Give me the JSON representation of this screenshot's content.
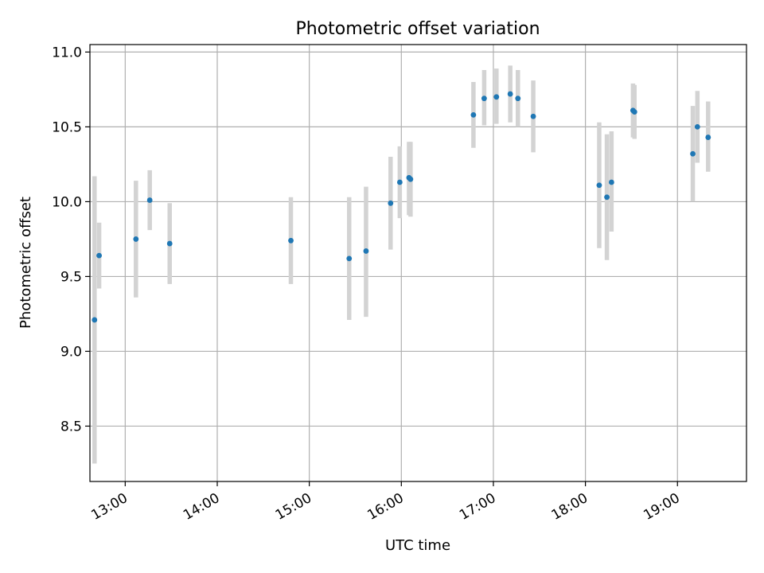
{
  "chart_data": {
    "type": "scatter",
    "title": "Photometric offset variation",
    "xlabel": "UTC time",
    "ylabel": "Photometric offset",
    "x_tick_labels": [
      "13:00",
      "14:00",
      "15:00",
      "16:00",
      "17:00",
      "18:00",
      "19:00"
    ],
    "y_tick_labels": [
      "8.5",
      "9.0",
      "9.5",
      "10.0",
      "10.5",
      "11.0"
    ],
    "xlim": [
      "12:37",
      "19:45"
    ],
    "ylim": [
      8.13,
      11.05
    ],
    "grid": true,
    "colors": {
      "point": "#1f77b4",
      "errorbar": "#d3d3d3",
      "grid": "#b0b0b0"
    },
    "points": [
      {
        "t": "12:40",
        "y": 9.21,
        "lo": 8.25,
        "hi": 10.17
      },
      {
        "t": "12:43",
        "y": 9.64,
        "lo": 9.42,
        "hi": 9.86
      },
      {
        "t": "13:07",
        "y": 9.75,
        "lo": 9.36,
        "hi": 10.14
      },
      {
        "t": "13:16",
        "y": 10.01,
        "lo": 9.81,
        "hi": 10.21
      },
      {
        "t": "13:29",
        "y": 9.72,
        "lo": 9.45,
        "hi": 9.99
      },
      {
        "t": "14:48",
        "y": 9.74,
        "lo": 9.45,
        "hi": 10.03
      },
      {
        "t": "15:26",
        "y": 9.62,
        "lo": 9.21,
        "hi": 10.03
      },
      {
        "t": "15:37",
        "y": 9.67,
        "lo": 9.23,
        "hi": 10.1
      },
      {
        "t": "15:53",
        "y": 9.99,
        "lo": 9.68,
        "hi": 10.3
      },
      {
        "t": "15:59",
        "y": 10.13,
        "lo": 9.89,
        "hi": 10.37
      },
      {
        "t": "16:05",
        "y": 10.16,
        "lo": 9.91,
        "hi": 10.4
      },
      {
        "t": "16:06",
        "y": 10.15,
        "lo": 9.9,
        "hi": 10.4
      },
      {
        "t": "16:47",
        "y": 10.58,
        "lo": 10.36,
        "hi": 10.8
      },
      {
        "t": "16:54",
        "y": 10.69,
        "lo": 10.51,
        "hi": 10.88
      },
      {
        "t": "17:02",
        "y": 10.7,
        "lo": 10.52,
        "hi": 10.89
      },
      {
        "t": "17:11",
        "y": 10.72,
        "lo": 10.53,
        "hi": 10.91
      },
      {
        "t": "17:16",
        "y": 10.69,
        "lo": 10.5,
        "hi": 10.88
      },
      {
        "t": "17:26",
        "y": 10.57,
        "lo": 10.33,
        "hi": 10.81
      },
      {
        "t": "18:09",
        "y": 10.11,
        "lo": 9.69,
        "hi": 10.53
      },
      {
        "t": "18:14",
        "y": 10.03,
        "lo": 9.61,
        "hi": 10.45
      },
      {
        "t": "18:17",
        "y": 10.13,
        "lo": 9.8,
        "hi": 10.47
      },
      {
        "t": "18:31",
        "y": 10.61,
        "lo": 10.43,
        "hi": 10.79
      },
      {
        "t": "18:32",
        "y": 10.6,
        "lo": 10.42,
        "hi": 10.78
      },
      {
        "t": "19:10",
        "y": 10.32,
        "lo": 10.0,
        "hi": 10.64
      },
      {
        "t": "19:13",
        "y": 10.5,
        "lo": 10.26,
        "hi": 10.74
      },
      {
        "t": "19:20",
        "y": 10.43,
        "lo": 10.2,
        "hi": 10.67
      }
    ]
  }
}
